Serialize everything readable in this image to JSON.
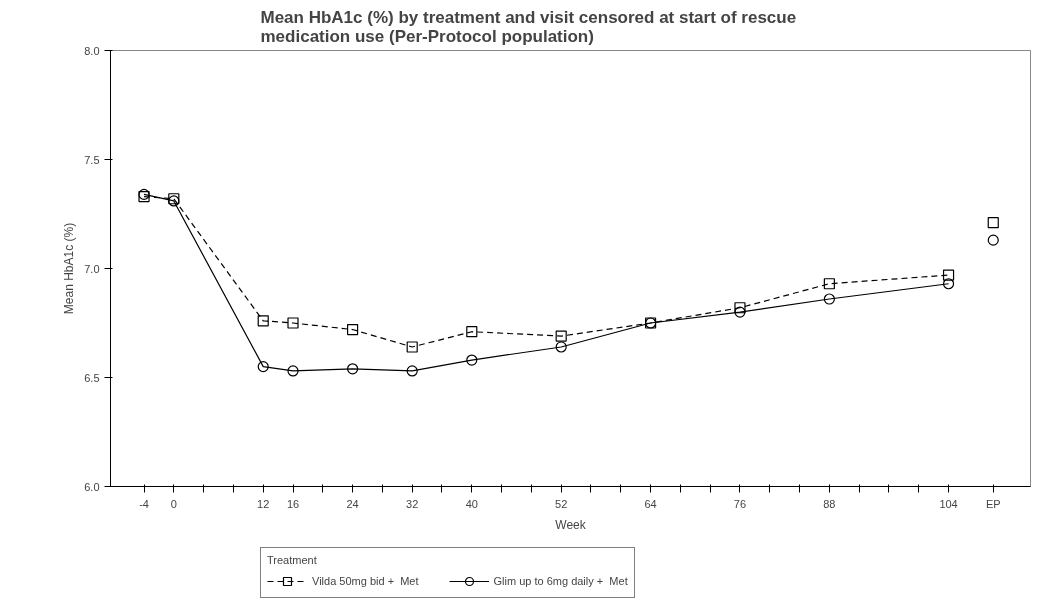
{
  "chart_data": {
    "type": "line",
    "title": "Mean HbA1c (%) by treatment and visit censored at start of rescue\nmedication use (Per-Protocol population)",
    "xlabel": "Week",
    "ylabel": "Mean HbA1c (%)",
    "legend_title": "Treatment",
    "xlim": [
      -8.5,
      115
    ],
    "xticks": [
      -4,
      0,
      {
        "value": 4,
        "label": null
      },
      {
        "value": 8,
        "label": null
      },
      12,
      16,
      {
        "value": 20,
        "label": null
      },
      24,
      {
        "value": 28,
        "label": null
      },
      32,
      {
        "value": 36,
        "label": null
      },
      40,
      {
        "value": 44,
        "label": null
      },
      {
        "value": 48,
        "label": null
      },
      52,
      {
        "value": 56,
        "label": null
      },
      {
        "value": 60,
        "label": null
      },
      64,
      {
        "value": 68,
        "label": null
      },
      {
        "value": 72,
        "label": null
      },
      76,
      {
        "value": 80,
        "label": null
      },
      {
        "value": 84,
        "label": null
      },
      88,
      {
        "value": 92,
        "label": null
      },
      {
        "value": 96,
        "label": null
      },
      {
        "value": 100,
        "label": null
      },
      104,
      {
        "value": 110,
        "label": "EP"
      }
    ],
    "ylim": [
      6.0,
      8.0
    ],
    "yticks": [
      {
        "value": 6,
        "label": "6.0"
      },
      6.5,
      {
        "value": 7,
        "label": "7.0"
      },
      7.5,
      {
        "value": 8,
        "label": "8.0"
      }
    ],
    "grid": false,
    "legend": "bottom",
    "series": [
      {
        "name": "Vilda 50mg bid +  Met",
        "color": "#000000",
        "marker": "square",
        "line_style": "dashed",
        "x": [
          -4,
          0,
          12,
          16,
          24,
          32,
          40,
          52,
          64,
          76,
          88,
          104
        ],
        "values": [
          7.33,
          7.32,
          6.76,
          6.75,
          6.72,
          6.64,
          6.71,
          6.69,
          6.75,
          6.82,
          6.93,
          6.97
        ]
      },
      {
        "name": "Glim up to 6mg daily +  Met",
        "color": "#000000",
        "marker": "circle",
        "line_style": "solid",
        "x": [
          -4,
          0,
          12,
          16,
          24,
          32,
          40,
          52,
          64,
          76,
          88,
          104
        ],
        "values": [
          7.34,
          7.31,
          6.55,
          6.53,
          6.54,
          6.53,
          6.58,
          6.64,
          6.75,
          6.8,
          6.86,
          6.93
        ]
      },
      {
        "type": "scatter",
        "color": "#000000",
        "marker": "square",
        "x": [
          110
        ],
        "values": [
          7.21
        ]
      },
      {
        "type": "scatter",
        "color": "#000000",
        "marker": "circle",
        "x": [
          110
        ],
        "values": [
          7.13
        ]
      }
    ]
  }
}
